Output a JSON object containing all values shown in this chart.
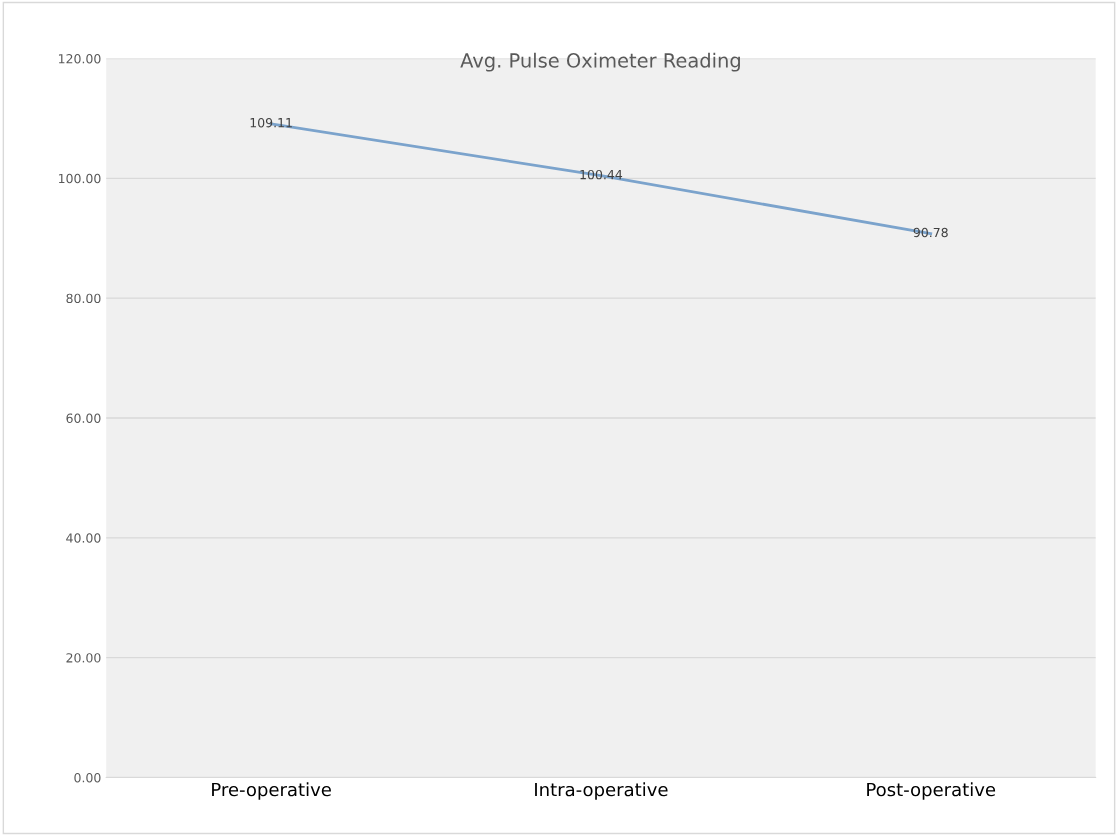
{
  "chart_data": {
    "type": "line",
    "title": "Avg. Pulse Oximeter Reading",
    "categories": [
      "Pre-operative",
      "Intra-operative",
      "Post-operative"
    ],
    "series": [
      {
        "color": "#7ba3cc",
        "values": [
          109.11,
          100.44,
          90.78
        ]
      }
    ],
    "ylim": [
      0,
      120
    ],
    "yticks": [
      {
        "value": 0,
        "label": "0.00"
      },
      {
        "value": 20,
        "label": "20.00"
      },
      {
        "value": 40,
        "label": "40.00"
      },
      {
        "value": 60,
        "label": "60.00"
      },
      {
        "value": 80,
        "label": "80.00"
      },
      {
        "value": 100,
        "label": "100.00"
      },
      {
        "value": 120,
        "label": "120.00"
      }
    ],
    "grid": "y",
    "data_labels": true,
    "marker": "none",
    "line_style": "solid",
    "legend": false
  }
}
